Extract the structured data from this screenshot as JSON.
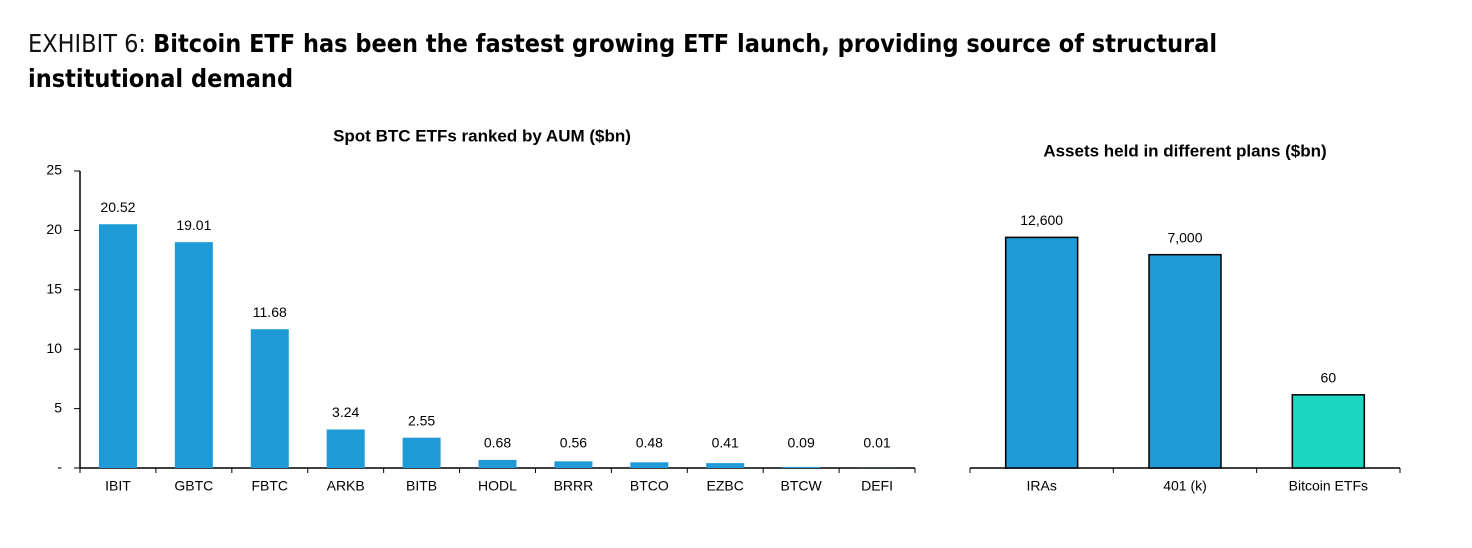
{
  "header": {
    "label": "EXHIBIT 6:",
    "title": "Bitcoin ETF has been the fastest growing ETF launch, providing source of structural institutional demand"
  },
  "chart_data": [
    {
      "type": "bar",
      "title": "Spot BTC ETFs ranked by AUM ($bn)",
      "categories": [
        "IBIT",
        "GBTC",
        "FBTC",
        "ARKB",
        "BITB",
        "HODL",
        "BRRR",
        "BTCO",
        "EZBC",
        "BTCW",
        "DEFI"
      ],
      "values": [
        20.52,
        19.01,
        11.68,
        3.24,
        2.55,
        0.68,
        0.56,
        0.48,
        0.41,
        0.09,
        0.01
      ],
      "color": "#1e9ad6",
      "ylim": [
        0,
        25
      ],
      "yticks": [
        {
          "value": 0,
          "label": "-"
        },
        5,
        10,
        15,
        20,
        25
      ]
    },
    {
      "type": "bar",
      "title": "Assets held in different plans ($bn)",
      "categories": [
        "IRAs",
        "401 (k)",
        "Bitcoin ETFs"
      ],
      "values": [
        12600,
        7000,
        60
      ],
      "value_labels": [
        "12,600",
        "7,000",
        "60"
      ],
      "colors": [
        "#1e9ad6",
        "#1e9ad6",
        "#1dd6c0"
      ],
      "log_scale": true,
      "ylim": [
        5,
        120000
      ]
    }
  ]
}
